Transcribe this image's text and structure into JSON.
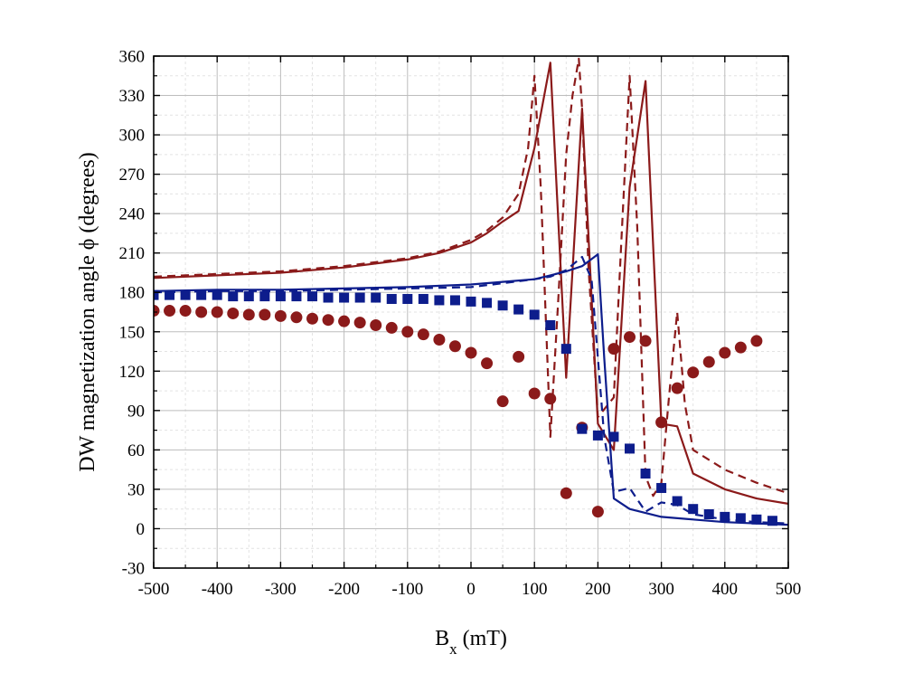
{
  "chart_data": {
    "type": "line",
    "title": "",
    "xlabel": {
      "main": "B",
      "sub": "x",
      "unit": " (mT)"
    },
    "ylabel": "DW magnetization angle ϕ (degrees)",
    "xlim": [
      -500,
      500
    ],
    "ylim": [
      -30,
      360
    ],
    "xticks": [
      -500,
      -400,
      -300,
      -200,
      -100,
      0,
      100,
      200,
      300,
      400,
      500
    ],
    "yticks": [
      -30,
      0,
      30,
      60,
      90,
      120,
      150,
      180,
      210,
      240,
      270,
      300,
      330,
      360
    ],
    "grid": true,
    "colors": {
      "red": "#8b1a1a",
      "blue": "#0d1d8c",
      "frame": "#000000"
    },
    "series": [
      {
        "name": "red-solid",
        "style": "solid",
        "color": "#8b1a1a",
        "x": [
          -500,
          -400,
          -300,
          -200,
          -100,
          -50,
          0,
          25,
          50,
          75,
          100,
          125,
          150,
          175,
          200,
          225,
          250,
          275,
          300,
          325,
          350,
          400,
          450,
          500
        ],
        "y": [
          191,
          193,
          195,
          199,
          205,
          210,
          218,
          225,
          234,
          242,
          290,
          355,
          115,
          320,
          80,
          60,
          260,
          341,
          80,
          78,
          42,
          30,
          23,
          19
        ]
      },
      {
        "name": "red-dashed",
        "style": "dashed",
        "color": "#8b1a1a",
        "x": [
          -500,
          -400,
          -300,
          -200,
          -100,
          -50,
          0,
          25,
          50,
          75,
          90,
          100,
          110,
          125,
          137,
          150,
          160,
          170,
          175,
          185,
          200,
          225,
          237,
          250,
          262,
          275,
          287,
          300,
          312,
          325,
          337,
          350,
          400,
          450,
          500
        ],
        "y": [
          192,
          194,
          196,
          200,
          206,
          211,
          220,
          227,
          237,
          255,
          290,
          345,
          260,
          70,
          170,
          285,
          330,
          358,
          320,
          200,
          85,
          100,
          220,
          345,
          230,
          40,
          25,
          35,
          100,
          165,
          95,
          60,
          45,
          35,
          27
        ]
      },
      {
        "name": "blue-solid",
        "style": "solid",
        "color": "#0d1d8c",
        "x": [
          -500,
          -400,
          -300,
          -200,
          -100,
          0,
          50,
          100,
          125,
          150,
          175,
          200,
          210,
          225,
          250,
          300,
          350,
          400,
          450,
          500
        ],
        "y": [
          181,
          182,
          182,
          183,
          184,
          186,
          188,
          190,
          193,
          196,
          200,
          209,
          130,
          23,
          15,
          9,
          7,
          5,
          4,
          3
        ]
      },
      {
        "name": "blue-dashed",
        "style": "dashed",
        "color": "#0d1d8c",
        "x": [
          -500,
          -400,
          -300,
          -200,
          -100,
          0,
          50,
          100,
          125,
          150,
          175,
          190,
          200,
          210,
          225,
          250,
          275,
          300,
          325,
          350,
          400,
          450,
          500
        ],
        "y": [
          180,
          181,
          181,
          182,
          183,
          184,
          187,
          190,
          192,
          197,
          207,
          190,
          130,
          70,
          28,
          31,
          13,
          20,
          18,
          11,
          7,
          5,
          4
        ]
      },
      {
        "name": "red-circles",
        "style": "circle",
        "color": "#8b1a1a",
        "x": [
          -500,
          -475,
          -450,
          -425,
          -400,
          -375,
          -350,
          -325,
          -300,
          -275,
          -250,
          -225,
          -200,
          -175,
          -150,
          -125,
          -100,
          -75,
          -50,
          -25,
          0,
          25,
          50,
          75,
          100,
          125,
          150,
          175,
          200,
          225,
          250,
          275,
          300,
          325,
          350,
          375,
          400,
          425,
          450
        ],
        "y": [
          166,
          166,
          166,
          165,
          165,
          164,
          163,
          163,
          162,
          161,
          160,
          159,
          158,
          157,
          155,
          153,
          150,
          148,
          144,
          139,
          134,
          126,
          97,
          131,
          103,
          99,
          27,
          77,
          13,
          137,
          146,
          143,
          81,
          107,
          119,
          127,
          134,
          138,
          143
        ]
      },
      {
        "name": "blue-squares",
        "style": "square",
        "color": "#0d1d8c",
        "x": [
          -500,
          -475,
          -450,
          -425,
          -400,
          -375,
          -350,
          -325,
          -300,
          -275,
          -250,
          -225,
          -200,
          -175,
          -150,
          -125,
          -100,
          -75,
          -50,
          -25,
          0,
          25,
          50,
          75,
          100,
          125,
          150,
          175,
          200,
          225,
          250,
          275,
          300,
          325,
          350,
          375,
          400,
          425,
          450,
          475
        ],
        "y": [
          178,
          178,
          178,
          178,
          178,
          177,
          177,
          177,
          177,
          177,
          177,
          176,
          176,
          176,
          176,
          175,
          175,
          175,
          174,
          174,
          173,
          172,
          170,
          167,
          163,
          155,
          137,
          76,
          71,
          70,
          61,
          42,
          31,
          21,
          15,
          11,
          9,
          8,
          7,
          6
        ]
      }
    ]
  }
}
